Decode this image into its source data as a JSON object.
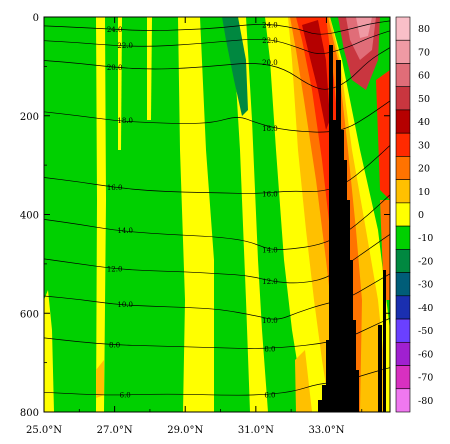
{
  "chart_data": {
    "type": "heatmap",
    "title": "",
    "xlabel": "",
    "ylabel": "",
    "x_range": [
      25.0,
      34.8
    ],
    "y_range": [
      0,
      800
    ],
    "y_inverted": true,
    "x_ticks": [
      {
        "value": 25.0,
        "label": "25.0°N"
      },
      {
        "value": 27.0,
        "label": "27.0°N"
      },
      {
        "value": 29.0,
        "label": "29.0°N"
      },
      {
        "value": 31.0,
        "label": "31.0°N"
      },
      {
        "value": 33.0,
        "label": "33.0°N"
      }
    ],
    "y_ticks": [
      {
        "value": 0,
        "label": "0"
      },
      {
        "value": 200,
        "label": "200"
      },
      {
        "value": 400,
        "label": "400"
      },
      {
        "value": 600,
        "label": "600"
      },
      {
        "value": 800,
        "label": "800"
      }
    ],
    "colorbar": {
      "levels": [
        80,
        70,
        60,
        50,
        40,
        30,
        20,
        10,
        0,
        -10,
        -20,
        -30,
        -40,
        -50,
        -60,
        -70,
        -80
      ],
      "colors": [
        "#f9bfc8",
        "#ef9aa4",
        "#e06d78",
        "#c9363f",
        "#b50000",
        "#ff2a00",
        "#ff7300",
        "#ffc000",
        "#ffff00",
        "#00d000",
        "#008840",
        "#005d78",
        "#1a2fb0",
        "#6a40ff",
        "#a020d0",
        "#d830c0",
        "#f078f0"
      ],
      "placement": "right"
    },
    "contours": [
      {
        "label": "24.0",
        "points": [
          [
            25.0,
            18
          ],
          [
            26.0,
            21
          ],
          [
            27.0,
            25
          ],
          [
            28.0,
            28
          ],
          [
            29.0,
            26
          ],
          [
            30.0,
            22
          ],
          [
            31.0,
            14
          ],
          [
            31.6,
            16
          ],
          [
            32.2,
            24
          ],
          [
            32.8,
            38
          ],
          [
            33.6,
            26
          ],
          [
            34.2,
            14
          ],
          [
            34.8,
            8
          ]
        ]
      },
      {
        "label": "22.0",
        "points": [
          [
            25.0,
            48
          ],
          [
            26.0,
            52
          ],
          [
            27.0,
            58
          ],
          [
            28.0,
            60
          ],
          [
            29.0,
            56
          ],
          [
            30.0,
            50
          ],
          [
            31.0,
            44
          ],
          [
            31.6,
            48
          ],
          [
            32.2,
            62
          ],
          [
            32.8,
            78
          ],
          [
            33.6,
            62
          ],
          [
            34.2,
            42
          ],
          [
            34.8,
            28
          ]
        ]
      },
      {
        "label": "20.0",
        "points": [
          [
            25.0,
            88
          ],
          [
            26.0,
            94
          ],
          [
            27.0,
            102
          ],
          [
            28.0,
            106
          ],
          [
            29.0,
            104
          ],
          [
            30.0,
            98
          ],
          [
            31.0,
            92
          ],
          [
            31.8,
            104
          ],
          [
            32.5,
            138
          ],
          [
            33.0,
            150
          ],
          [
            33.6,
            132
          ],
          [
            34.2,
            88
          ],
          [
            34.8,
            62
          ]
        ]
      },
      {
        "label": "18.0",
        "points": [
          [
            25.0,
            192
          ],
          [
            26.0,
            200
          ],
          [
            27.0,
            210
          ],
          [
            28.0,
            214
          ],
          [
            29.0,
            216
          ],
          [
            29.8,
            214
          ],
          [
            30.5,
            200
          ],
          [
            31.0,
            214
          ],
          [
            31.6,
            226
          ],
          [
            32.3,
            232
          ],
          [
            33.0,
            234
          ],
          [
            33.6,
            226
          ],
          [
            34.2,
            200
          ],
          [
            34.8,
            170
          ]
        ]
      },
      {
        "label": "16.0",
        "points": [
          [
            25.0,
            325
          ],
          [
            26.0,
            334
          ],
          [
            27.0,
            345
          ],
          [
            28.0,
            352
          ],
          [
            29.0,
            355
          ],
          [
            30.0,
            356
          ],
          [
            31.0,
            358
          ],
          [
            32.0,
            352
          ],
          [
            32.8,
            355
          ],
          [
            33.5,
            340
          ],
          [
            34.2,
            300
          ],
          [
            34.8,
            260
          ]
        ]
      },
      {
        "label": "14.0",
        "points": [
          [
            25.0,
            410
          ],
          [
            26.0,
            420
          ],
          [
            27.0,
            432
          ],
          [
            28.0,
            438
          ],
          [
            29.0,
            442
          ],
          [
            30.0,
            446
          ],
          [
            30.8,
            454
          ],
          [
            31.4,
            472
          ],
          [
            32.0,
            470
          ],
          [
            32.8,
            462
          ],
          [
            33.5,
            440
          ],
          [
            34.2,
            400
          ],
          [
            34.8,
            360
          ]
        ]
      },
      {
        "label": "12.0",
        "points": [
          [
            25.0,
            490
          ],
          [
            26.0,
            500
          ],
          [
            27.0,
            510
          ],
          [
            28.0,
            514
          ],
          [
            29.0,
            516
          ],
          [
            30.0,
            520
          ],
          [
            30.8,
            524
          ],
          [
            31.5,
            536
          ],
          [
            32.2,
            540
          ],
          [
            33.0,
            530
          ],
          [
            33.6,
            500
          ],
          [
            34.2,
            470
          ],
          [
            34.8,
            440
          ]
        ]
      },
      {
        "label": "10.0",
        "points": [
          [
            25.0,
            565
          ],
          [
            26.0,
            572
          ],
          [
            27.0,
            582
          ],
          [
            28.0,
            586
          ],
          [
            29.0,
            588
          ],
          [
            30.0,
            592
          ],
          [
            31.0,
            605
          ],
          [
            31.6,
            615
          ],
          [
            32.2,
            598
          ],
          [
            32.8,
            584
          ],
          [
            33.6,
            570
          ],
          [
            34.2,
            545
          ],
          [
            34.8,
            520
          ]
        ]
      },
      {
        "label": "8.0",
        "points": [
          [
            25.0,
            650
          ],
          [
            26.0,
            658
          ],
          [
            27.0,
            664
          ],
          [
            28.0,
            666
          ],
          [
            29.0,
            668
          ],
          [
            30.0,
            670
          ],
          [
            31.0,
            672
          ],
          [
            32.0,
            668
          ],
          [
            32.8,
            662
          ],
          [
            33.6,
            650
          ],
          [
            34.2,
            630
          ],
          [
            34.8,
            610
          ]
        ]
      },
      {
        "label": "6.0",
        "points": [
          [
            25.0,
            760
          ],
          [
            26.0,
            764
          ],
          [
            27.0,
            766
          ],
          [
            28.0,
            764
          ],
          [
            29.0,
            764
          ],
          [
            30.0,
            766
          ],
          [
            31.0,
            766
          ],
          [
            32.0,
            760
          ],
          [
            32.8,
            742
          ],
          [
            33.4,
            740
          ],
          [
            34.2,
            722
          ],
          [
            34.8,
            710
          ]
        ]
      }
    ]
  }
}
